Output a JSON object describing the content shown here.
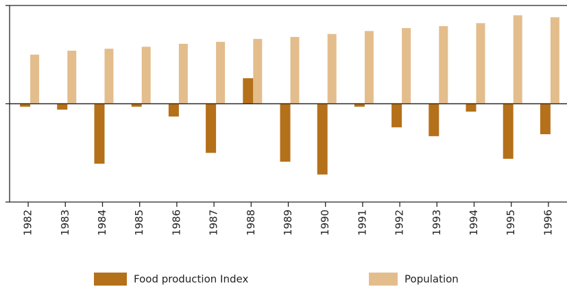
{
  "chart_data": {
    "type": "bar",
    "categories": [
      "1982",
      "1983",
      "1984",
      "1985",
      "1986",
      "1987",
      "1988",
      "1989",
      "1990",
      "1991",
      "1992",
      "1993",
      "1994",
      "1995",
      "1996"
    ],
    "series": [
      {
        "name": "Food production Index",
        "color": "#b5701a",
        "values": [
          -0.3,
          -0.6,
          -6.1,
          -0.3,
          -1.3,
          -5.0,
          2.6,
          -5.9,
          -7.2,
          -0.3,
          -2.4,
          -3.3,
          -0.8,
          -5.6,
          -3.1
        ]
      },
      {
        "name": "Population",
        "color": "#e3bd8c",
        "values": [
          5.0,
          5.4,
          5.6,
          5.8,
          6.1,
          6.3,
          6.6,
          6.8,
          7.1,
          7.4,
          7.7,
          7.9,
          8.2,
          9.0,
          8.8
        ]
      }
    ],
    "ylim": [
      -10,
      10
    ],
    "yticks": [
      -10,
      0,
      10
    ]
  }
}
